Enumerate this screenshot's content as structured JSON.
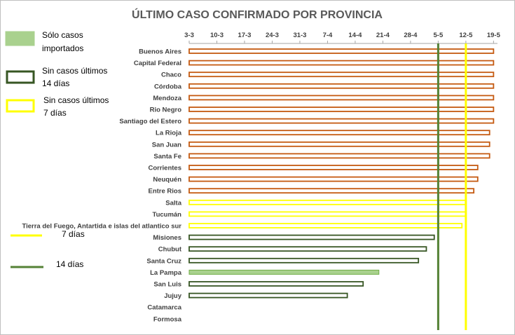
{
  "chart_data": {
    "type": "bar",
    "orientation": "horizontal",
    "title": "ÚLTIMO CASO CONFIRMADO POR PROVINCIA",
    "x_tick_labels": [
      "3-3",
      "10-3",
      "17-3",
      "24-3",
      "31-3",
      "7-4",
      "14-4",
      "21-4",
      "28-4",
      "5-5",
      "12-5",
      "19-5"
    ],
    "x_axis_position": "top",
    "x_range_days_from_first_tick": [
      0,
      78
    ],
    "categories": [
      "Buenos Aires",
      "Capital Federal",
      "Chaco",
      "Córdoba",
      "Mendoza",
      "Rio Negro",
      "Santiago del Estero",
      "La Rioja",
      "San Juan",
      "Santa Fe",
      "Corrientes",
      "Neuquén",
      "Entre Rios",
      "Salta",
      "Tucumán",
      "Tierra del Fuego, Antartida e islas del atlantico sur",
      "Misiones",
      "Chubut",
      "Santa Cruz",
      "La Pampa",
      "San Luis",
      "Jujuy",
      "Catamarca",
      "Formosa"
    ],
    "last_case_date": [
      "2020-05-19",
      "2020-05-19",
      "2020-05-19",
      "2020-05-19",
      "2020-05-19",
      "2020-05-19",
      "2020-05-19",
      "2020-05-18",
      "2020-05-18",
      "2020-05-18",
      "2020-05-15",
      "2020-05-15",
      "2020-05-14",
      "2020-05-12",
      "2020-05-12",
      "2020-05-11",
      "2020-05-04",
      "2020-05-02",
      "2020-04-30",
      "2020-04-20",
      "2020-04-16",
      "2020-04-12",
      null,
      null
    ],
    "group": [
      "recent",
      "recent",
      "recent",
      "recent",
      "recent",
      "recent",
      "recent",
      "recent",
      "recent",
      "recent",
      "recent",
      "recent",
      "recent",
      "7d",
      "7d",
      "7d",
      "14d",
      "14d",
      "14d",
      "imported",
      "14d",
      "14d",
      "none",
      "none"
    ],
    "reference_lines": [
      {
        "label": "14 días",
        "date": "2020-05-05",
        "color": "#548235"
      },
      {
        "label": "7 días",
        "date": "2020-05-12",
        "color": "#ffff00"
      }
    ],
    "legend_placement": "left"
  },
  "colors": {
    "recent_border": "#c55a11",
    "seven_border": "#ffff00",
    "fourteen_border": "#375623",
    "imported_fill": "#a9d18e",
    "imported_border": "#70ad47",
    "line_14": "#548235",
    "line_7": "#ffff00",
    "gridline": "#d9d9d9"
  },
  "legend": {
    "imported": [
      "Sólo casos",
      "importados"
    ],
    "no_cases_14": [
      "Sin casos últimos",
      "14 días"
    ],
    "no_cases_7": [
      "Sin casos últimos",
      "7 días"
    ],
    "line_7": "7 días",
    "line_14": "14 días"
  }
}
